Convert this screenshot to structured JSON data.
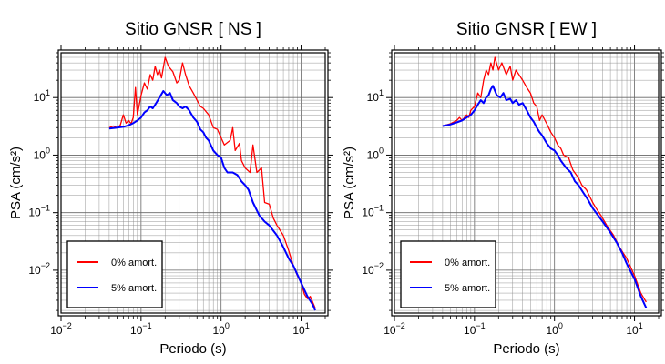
{
  "chart_data": [
    {
      "type": "line",
      "title": "Sitio GNSR [ NS ]",
      "xlabel": "Periodo (s)",
      "ylabel": "PSA (cm/s²)",
      "xscale": "log",
      "yscale": "log",
      "xlim": [
        0.01,
        20
      ],
      "ylim": [
        0.0018,
        60
      ],
      "xticks": [
        {
          "base": "10",
          "exp": "−2",
          "value": 0.01
        },
        {
          "base": "10",
          "exp": "−1",
          "value": 0.1
        },
        {
          "base": "10",
          "exp": "0",
          "value": 1
        },
        {
          "base": "10",
          "exp": "1",
          "value": 10
        }
      ],
      "yticks": [
        {
          "base": "10",
          "exp": "−2",
          "value": 0.01
        },
        {
          "base": "10",
          "exp": "−1",
          "value": 0.1
        },
        {
          "base": "10",
          "exp": "0",
          "value": 1
        },
        {
          "base": "10",
          "exp": "1",
          "value": 10
        }
      ],
      "grid": true,
      "legend_position": "bottom-left",
      "series": [
        {
          "name": "0% amort.",
          "color": "#ff0000",
          "points": [
            [
              0.04,
              3.0
            ],
            [
              0.045,
              3.2
            ],
            [
              0.05,
              3.0
            ],
            [
              0.055,
              3.3
            ],
            [
              0.06,
              5.0
            ],
            [
              0.065,
              3.6
            ],
            [
              0.07,
              4.0
            ],
            [
              0.075,
              3.5
            ],
            [
              0.08,
              4.5
            ],
            [
              0.085,
              15.0
            ],
            [
              0.09,
              5.0
            ],
            [
              0.1,
              11.0
            ],
            [
              0.11,
              18.0
            ],
            [
              0.12,
              14.0
            ],
            [
              0.13,
              25.0
            ],
            [
              0.14,
              20.0
            ],
            [
              0.15,
              35.0
            ],
            [
              0.16,
              25.0
            ],
            [
              0.17,
              30.0
            ],
            [
              0.18,
              22.0
            ],
            [
              0.2,
              50.0
            ],
            [
              0.22,
              35.0
            ],
            [
              0.25,
              28.0
            ],
            [
              0.28,
              18.0
            ],
            [
              0.3,
              20.0
            ],
            [
              0.33,
              40.0
            ],
            [
              0.36,
              25.0
            ],
            [
              0.4,
              16.0
            ],
            [
              0.45,
              12.0
            ],
            [
              0.5,
              9.0
            ],
            [
              0.55,
              7.0
            ],
            [
              0.6,
              6.5
            ],
            [
              0.7,
              5.0
            ],
            [
              0.8,
              3.0
            ],
            [
              0.9,
              2.8
            ],
            [
              1.0,
              2.0
            ],
            [
              1.1,
              1.5
            ],
            [
              1.3,
              1.8
            ],
            [
              1.4,
              3.0
            ],
            [
              1.5,
              1.2
            ],
            [
              1.7,
              1.6
            ],
            [
              1.8,
              0.8
            ],
            [
              2.0,
              0.6
            ],
            [
              2.3,
              0.5
            ],
            [
              2.5,
              1.5
            ],
            [
              2.8,
              0.5
            ],
            [
              3.2,
              0.6
            ],
            [
              3.5,
              0.15
            ],
            [
              4.0,
              0.14
            ],
            [
              4.5,
              0.08
            ],
            [
              5.0,
              0.06
            ],
            [
              6.0,
              0.04
            ],
            [
              7.0,
              0.022
            ],
            [
              8.0,
              0.012
            ],
            [
              9.0,
              0.008
            ],
            [
              10.0,
              0.006
            ],
            [
              11.0,
              0.0038
            ],
            [
              12.0,
              0.0032
            ],
            [
              13.0,
              0.0035
            ],
            [
              15.0,
              0.0022
            ]
          ]
        },
        {
          "name": "5% amort.",
          "color": "#0000ff",
          "points": [
            [
              0.04,
              2.9
            ],
            [
              0.05,
              3.0
            ],
            [
              0.06,
              3.1
            ],
            [
              0.07,
              3.3
            ],
            [
              0.08,
              3.6
            ],
            [
              0.09,
              4.0
            ],
            [
              0.1,
              4.5
            ],
            [
              0.11,
              5.5
            ],
            [
              0.12,
              6.0
            ],
            [
              0.13,
              7.0
            ],
            [
              0.14,
              6.5
            ],
            [
              0.15,
              7.5
            ],
            [
              0.17,
              10.0
            ],
            [
              0.19,
              13.0
            ],
            [
              0.21,
              11.0
            ],
            [
              0.23,
              12.0
            ],
            [
              0.25,
              9.0
            ],
            [
              0.28,
              8.0
            ],
            [
              0.3,
              7.0
            ],
            [
              0.33,
              6.5
            ],
            [
              0.36,
              7.0
            ],
            [
              0.4,
              6.0
            ],
            [
              0.45,
              4.5
            ],
            [
              0.5,
              3.8
            ],
            [
              0.55,
              2.8
            ],
            [
              0.6,
              2.5
            ],
            [
              0.65,
              2.0
            ],
            [
              0.7,
              1.8
            ],
            [
              0.8,
              1.2
            ],
            [
              0.9,
              1.0
            ],
            [
              1.0,
              0.9
            ],
            [
              1.1,
              0.6
            ],
            [
              1.2,
              0.5
            ],
            [
              1.4,
              0.5
            ],
            [
              1.6,
              0.45
            ],
            [
              1.8,
              0.35
            ],
            [
              2.0,
              0.3
            ],
            [
              2.2,
              0.25
            ],
            [
              2.5,
              0.15
            ],
            [
              3.0,
              0.09
            ],
            [
              3.5,
              0.07
            ],
            [
              4.0,
              0.06
            ],
            [
              5.0,
              0.04
            ],
            [
              6.0,
              0.025
            ],
            [
              7.0,
              0.016
            ],
            [
              8.0,
              0.012
            ],
            [
              10.0,
              0.006
            ],
            [
              12.0,
              0.0035
            ],
            [
              14.0,
              0.0025
            ],
            [
              15.0,
              0.002
            ]
          ]
        }
      ]
    },
    {
      "type": "line",
      "title": "Sitio GNSR [ EW ]",
      "xlabel": "Periodo (s)",
      "ylabel": "PSA (cm/s²)",
      "xscale": "log",
      "yscale": "log",
      "xlim": [
        0.01,
        20
      ],
      "ylim": [
        0.0018,
        60
      ],
      "xticks": [
        {
          "base": "10",
          "exp": "−2",
          "value": 0.01
        },
        {
          "base": "10",
          "exp": "−1",
          "value": 0.1
        },
        {
          "base": "10",
          "exp": "0",
          "value": 1
        },
        {
          "base": "10",
          "exp": "1",
          "value": 10
        }
      ],
      "yticks": [
        {
          "base": "10",
          "exp": "−2",
          "value": 0.01
        },
        {
          "base": "10",
          "exp": "−1",
          "value": 0.1
        },
        {
          "base": "10",
          "exp": "0",
          "value": 1
        },
        {
          "base": "10",
          "exp": "1",
          "value": 10
        }
      ],
      "grid": true,
      "legend_position": "bottom-left",
      "series": [
        {
          "name": "0% amort.",
          "color": "#ff0000",
          "points": [
            [
              0.04,
              3.2
            ],
            [
              0.05,
              3.5
            ],
            [
              0.06,
              4.0
            ],
            [
              0.065,
              4.5
            ],
            [
              0.07,
              4.0
            ],
            [
              0.08,
              5.0
            ],
            [
              0.085,
              4.5
            ],
            [
              0.09,
              6.0
            ],
            [
              0.1,
              7.0
            ],
            [
              0.11,
              12.0
            ],
            [
              0.12,
              10.0
            ],
            [
              0.13,
              20.0
            ],
            [
              0.14,
              30.0
            ],
            [
              0.15,
              25.0
            ],
            [
              0.16,
              40.0
            ],
            [
              0.17,
              30.0
            ],
            [
              0.18,
              50.0
            ],
            [
              0.2,
              30.0
            ],
            [
              0.22,
              40.0
            ],
            [
              0.25,
              25.0
            ],
            [
              0.28,
              35.0
            ],
            [
              0.3,
              20.0
            ],
            [
              0.33,
              30.0
            ],
            [
              0.36,
              25.0
            ],
            [
              0.4,
              20.0
            ],
            [
              0.45,
              15.0
            ],
            [
              0.5,
              12.0
            ],
            [
              0.55,
              8.0
            ],
            [
              0.6,
              7.0
            ],
            [
              0.65,
              4.0
            ],
            [
              0.7,
              5.0
            ],
            [
              0.8,
              3.5
            ],
            [
              0.9,
              2.5
            ],
            [
              1.0,
              2.0
            ],
            [
              1.1,
              1.5
            ],
            [
              1.2,
              1.3
            ],
            [
              1.3,
              1.0
            ],
            [
              1.5,
              0.9
            ],
            [
              1.7,
              0.55
            ],
            [
              2.0,
              0.4
            ],
            [
              2.2,
              0.3
            ],
            [
              2.5,
              0.25
            ],
            [
              3.0,
              0.15
            ],
            [
              3.3,
              0.12
            ],
            [
              3.8,
              0.09
            ],
            [
              4.5,
              0.06
            ],
            [
              5.5,
              0.04
            ],
            [
              6.5,
              0.025
            ],
            [
              8.0,
              0.016
            ],
            [
              10.0,
              0.008
            ],
            [
              12.0,
              0.004
            ],
            [
              14.0,
              0.0028
            ]
          ]
        },
        {
          "name": "5% amort.",
          "color": "#0000ff",
          "points": [
            [
              0.04,
              3.2
            ],
            [
              0.05,
              3.4
            ],
            [
              0.06,
              3.7
            ],
            [
              0.07,
              4.0
            ],
            [
              0.08,
              4.5
            ],
            [
              0.09,
              5.0
            ],
            [
              0.1,
              6.0
            ],
            [
              0.11,
              7.5
            ],
            [
              0.12,
              9.0
            ],
            [
              0.13,
              8.0
            ],
            [
              0.14,
              10.0
            ],
            [
              0.15,
              11.0
            ],
            [
              0.16,
              14.0
            ],
            [
              0.17,
              16.0
            ],
            [
              0.19,
              11.0
            ],
            [
              0.21,
              10.0
            ],
            [
              0.23,
              12.0
            ],
            [
              0.25,
              9.0
            ],
            [
              0.28,
              9.5
            ],
            [
              0.3,
              8.0
            ],
            [
              0.33,
              9.0
            ],
            [
              0.36,
              7.5
            ],
            [
              0.4,
              8.0
            ],
            [
              0.45,
              6.0
            ],
            [
              0.5,
              4.5
            ],
            [
              0.55,
              3.8
            ],
            [
              0.6,
              3.0
            ],
            [
              0.65,
              2.5
            ],
            [
              0.7,
              2.2
            ],
            [
              0.8,
              1.6
            ],
            [
              0.9,
              1.3
            ],
            [
              1.0,
              1.2
            ],
            [
              1.1,
              1.0
            ],
            [
              1.2,
              0.8
            ],
            [
              1.4,
              0.6
            ],
            [
              1.6,
              0.5
            ],
            [
              1.8,
              0.35
            ],
            [
              2.0,
              0.3
            ],
            [
              2.3,
              0.22
            ],
            [
              2.6,
              0.17
            ],
            [
              3.0,
              0.12
            ],
            [
              3.5,
              0.09
            ],
            [
              4.0,
              0.07
            ],
            [
              5.0,
              0.045
            ],
            [
              6.0,
              0.03
            ],
            [
              7.0,
              0.02
            ],
            [
              8.0,
              0.013
            ],
            [
              10.0,
              0.007
            ],
            [
              12.0,
              0.0035
            ],
            [
              14.0,
              0.0022
            ]
          ]
        }
      ]
    }
  ]
}
